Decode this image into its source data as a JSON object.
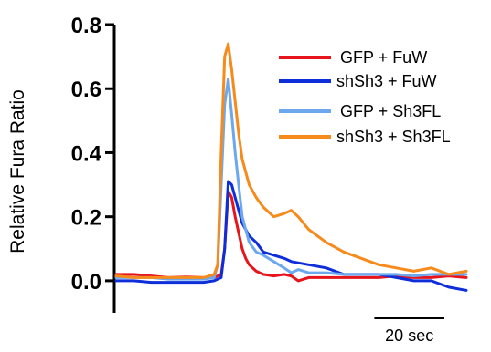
{
  "chart_data": {
    "type": "line",
    "title": "",
    "xlabel": "",
    "ylabel": "Relative Fura Ratio",
    "ylim": [
      -0.1,
      0.8
    ],
    "yticks": [
      0.0,
      0.2,
      0.4,
      0.6,
      0.8
    ],
    "ytick_labels": [
      "0.0",
      "0.2",
      "0.4",
      "0.6",
      "0.8"
    ],
    "xlim": [
      0,
      100
    ],
    "grid": false,
    "legend_position": "top-right",
    "scale_bar": {
      "label": "20 sec",
      "length": 20
    },
    "series": [
      {
        "name": "GFP + FuW",
        "color": "#e8141b",
        "x": [
          0,
          5,
          10,
          15,
          20,
          25,
          28,
          30,
          31,
          32,
          33,
          34,
          35,
          36,
          37,
          38,
          40,
          42,
          45,
          48,
          50,
          52,
          55,
          60,
          65,
          70,
          75,
          80,
          85,
          90,
          95,
          100
        ],
        "y": [
          0.02,
          0.02,
          0.015,
          0.01,
          0.012,
          0.01,
          0.01,
          0.02,
          0.1,
          0.28,
          0.26,
          0.2,
          0.15,
          0.1,
          0.07,
          0.05,
          0.03,
          0.02,
          0.015,
          0.02,
          0.015,
          0.0,
          0.01,
          0.01,
          0.01,
          0.01,
          0.01,
          0.015,
          0.01,
          0.01,
          0.015,
          0.01
        ]
      },
      {
        "name": "shSh3 + FuW",
        "color": "#0d2ed8",
        "x": [
          0,
          5,
          10,
          15,
          20,
          25,
          28,
          30,
          31,
          32,
          33,
          34,
          35,
          36,
          38,
          40,
          42,
          45,
          48,
          50,
          55,
          60,
          65,
          70,
          75,
          80,
          85,
          90,
          95,
          100
        ],
        "y": [
          0.0,
          0.0,
          -0.005,
          -0.005,
          -0.005,
          -0.005,
          0.0,
          0.01,
          0.1,
          0.31,
          0.3,
          0.26,
          0.22,
          0.18,
          0.14,
          0.12,
          0.09,
          0.08,
          0.07,
          0.06,
          0.05,
          0.04,
          0.02,
          0.02,
          0.02,
          0.01,
          0.0,
          0.0,
          -0.02,
          -0.03
        ]
      },
      {
        "name": "GFP + Sh3FL",
        "color": "#6da8ef",
        "x": [
          0,
          5,
          10,
          15,
          20,
          25,
          28,
          29,
          30,
          31,
          32,
          33,
          34,
          35,
          36,
          38,
          40,
          42,
          45,
          48,
          50,
          52,
          55,
          60,
          65,
          70,
          75,
          80,
          85,
          90,
          95,
          100
        ],
        "y": [
          0.01,
          0.01,
          0.01,
          0.005,
          0.005,
          0.005,
          0.01,
          0.05,
          0.3,
          0.55,
          0.63,
          0.52,
          0.4,
          0.3,
          0.2,
          0.12,
          0.09,
          0.08,
          0.06,
          0.04,
          0.025,
          0.035,
          0.025,
          0.025,
          0.02,
          0.02,
          0.02,
          0.02,
          0.015,
          0.02,
          0.02,
          0.02
        ]
      },
      {
        "name": "shSh3 + Sh3FL",
        "color": "#f68b1c",
        "x": [
          0,
          5,
          10,
          15,
          20,
          25,
          28,
          29,
          30,
          31,
          32,
          33,
          34,
          35,
          36,
          38,
          40,
          42,
          45,
          48,
          50,
          52,
          55,
          60,
          65,
          70,
          75,
          80,
          85,
          90,
          95,
          100
        ],
        "y": [
          0.015,
          0.01,
          0.01,
          0.01,
          0.01,
          0.01,
          0.02,
          0.05,
          0.4,
          0.7,
          0.74,
          0.66,
          0.56,
          0.46,
          0.38,
          0.3,
          0.26,
          0.23,
          0.2,
          0.21,
          0.22,
          0.2,
          0.16,
          0.12,
          0.09,
          0.07,
          0.05,
          0.04,
          0.03,
          0.04,
          0.02,
          0.03
        ]
      }
    ]
  }
}
